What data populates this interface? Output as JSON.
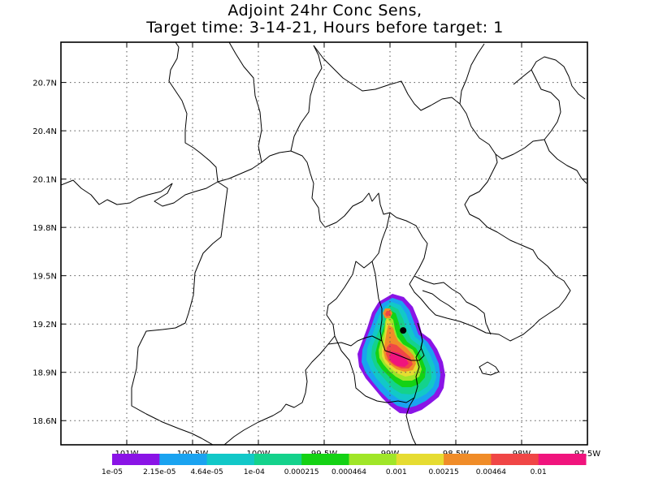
{
  "title": {
    "line1": "Adjoint 24hr Conc Sens,",
    "line2": "Target time: 3-14-21, Hours before target: 1"
  },
  "map": {
    "lon_range": [
      -101.5,
      -97.5
    ],
    "lat_range": [
      18.45,
      20.95
    ],
    "x_ticks": [
      {
        "value": -101.0,
        "label": "101W"
      },
      {
        "value": -100.5,
        "label": "100.5W"
      },
      {
        "value": -100.0,
        "label": "100W"
      },
      {
        "value": -99.5,
        "label": "99.5W"
      },
      {
        "value": -99.0,
        "label": "99W"
      },
      {
        "value": -98.5,
        "label": "98.5W"
      },
      {
        "value": -98.0,
        "label": "98W"
      },
      {
        "value": -97.5,
        "label": "97.5W"
      }
    ],
    "y_ticks": [
      {
        "value": 18.6,
        "label": "18.6N"
      },
      {
        "value": 18.9,
        "label": "18.9N"
      },
      {
        "value": 19.2,
        "label": "19.2N"
      },
      {
        "value": 19.5,
        "label": "19.5N"
      },
      {
        "value": 19.8,
        "label": "19.8N"
      },
      {
        "value": 20.1,
        "label": "20.1N"
      },
      {
        "value": 20.4,
        "label": "20.4N"
      },
      {
        "value": 20.7,
        "label": "20.7N"
      }
    ],
    "grid": "dotted",
    "target_point": {
      "lon": -98.9,
      "lat": 19.16
    }
  },
  "colorbar": {
    "colors": [
      "#8a14e6",
      "#1aa3f0",
      "#12c8c8",
      "#14d28c",
      "#14d214",
      "#a0e628",
      "#e6dc32",
      "#f08c28",
      "#f04646",
      "#f0147d"
    ],
    "labels": [
      "1e-05",
      "2.15e-05",
      "4.64e-05",
      "1e-04",
      "0.000215",
      "0.000464",
      "0.001",
      "0.00215",
      "0.00464",
      "0.01"
    ]
  }
}
